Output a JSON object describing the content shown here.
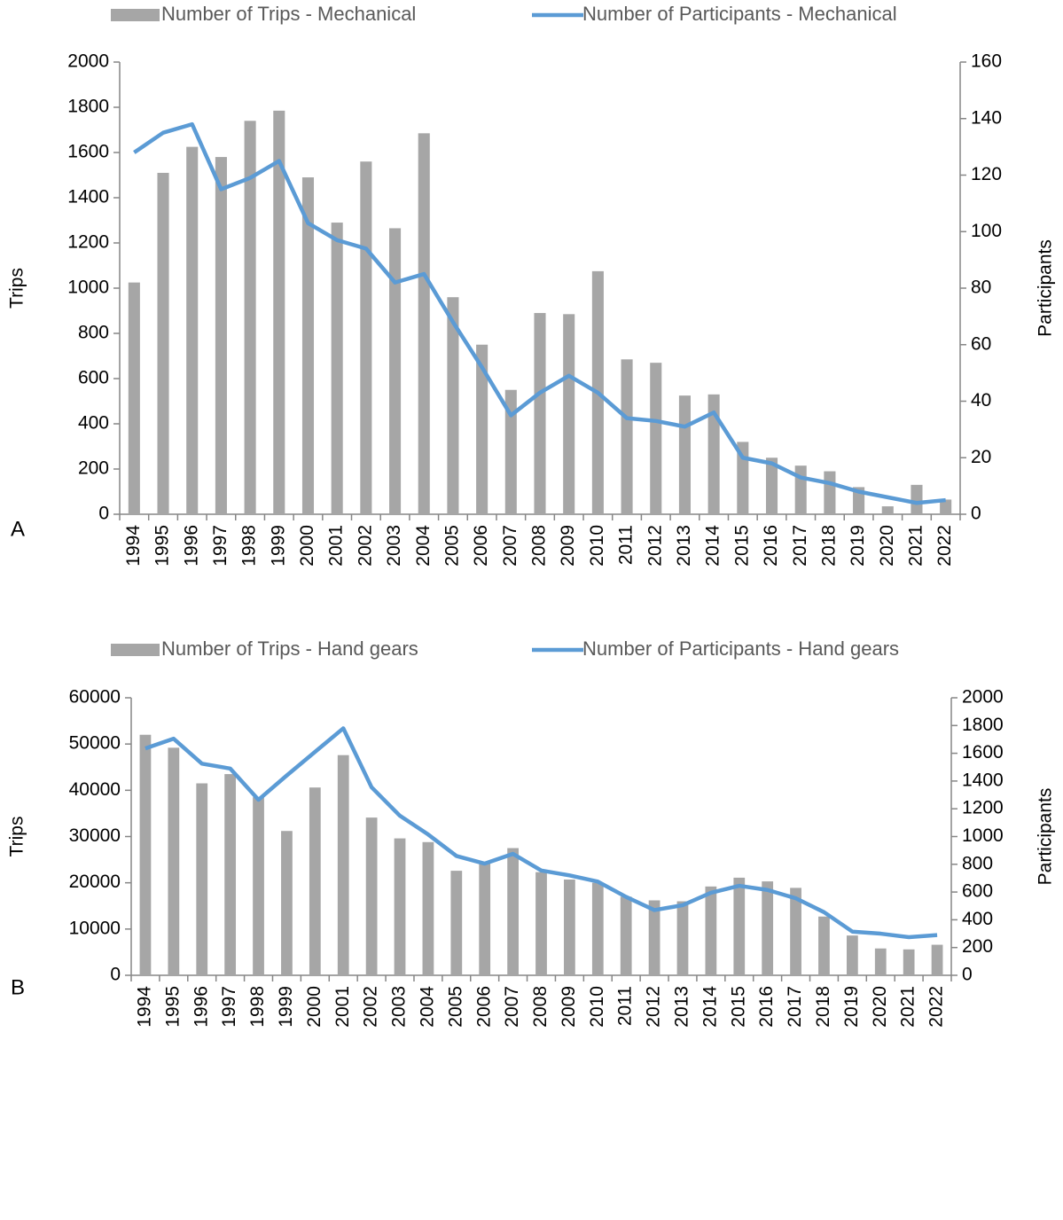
{
  "chart_data": [
    {
      "type": "combo",
      "panel_label": "A",
      "ylabel": "Trips",
      "y2label": "Participants",
      "categories": [
        "1994",
        "1995",
        "1996",
        "1997",
        "1998",
        "1999",
        "2000",
        "2001",
        "2002",
        "2003",
        "2004",
        "2005",
        "2006",
        "2007",
        "2008",
        "2009",
        "2010",
        "2011",
        "2012",
        "2013",
        "2014",
        "2015",
        "2016",
        "2017",
        "2018",
        "2019",
        "2020",
        "2021",
        "2022"
      ],
      "series": [
        {
          "name": "Number of Trips - Mechanical",
          "type": "bar",
          "color": "#a6a6a6",
          "values": [
            1025,
            1510,
            1625,
            1580,
            1740,
            1785,
            1490,
            1290,
            1560,
            1265,
            1685,
            960,
            750,
            550,
            890,
            885,
            1075,
            685,
            670,
            525,
            530,
            320,
            250,
            215,
            190,
            120,
            35,
            130,
            65
          ]
        },
        {
          "name": "Number of Participants - Mechanical",
          "type": "line",
          "axis": "y2",
          "color": "#5b9bd5",
          "values": [
            128,
            135,
            138,
            115,
            119,
            125,
            103,
            97,
            94,
            82,
            85,
            68,
            52,
            35,
            43,
            49,
            43,
            34,
            33,
            31,
            36,
            20,
            18,
            13,
            11,
            8,
            6,
            4,
            5
          ]
        }
      ],
      "ylim": [
        0,
        2000
      ],
      "yticks": [
        0,
        200,
        400,
        600,
        800,
        1000,
        1200,
        1400,
        1600,
        1800,
        2000
      ],
      "y2lim": [
        0,
        160
      ],
      "y2ticks": [
        0,
        20,
        40,
        60,
        80,
        100,
        120,
        140,
        160
      ],
      "legend": "top",
      "grid": false
    },
    {
      "type": "combo",
      "panel_label": "B",
      "ylabel": "Trips",
      "y2label": "Participants",
      "categories": [
        "1994",
        "1995",
        "1996",
        "1997",
        "1998",
        "1999",
        "2000",
        "2001",
        "2002",
        "2003",
        "2004",
        "2005",
        "2006",
        "2007",
        "2008",
        "2009",
        "2010",
        "2011",
        "2012",
        "2013",
        "2014",
        "2015",
        "2016",
        "2017",
        "2018",
        "2019",
        "2020",
        "2021",
        "2022"
      ],
      "series": [
        {
          "name": "Number of Trips - Hand gears",
          "type": "bar",
          "color": "#a6a6a6",
          "values": [
            52000,
            49200,
            41500,
            43500,
            38500,
            31200,
            40600,
            47600,
            34100,
            29600,
            28800,
            22600,
            24200,
            27500,
            22300,
            20700,
            20000,
            17000,
            16200,
            16000,
            19200,
            21100,
            20300,
            18900,
            12700,
            8600,
            5800,
            5600,
            6600
          ]
        },
        {
          "name": "Number of Participants - Hand gears",
          "type": "line",
          "axis": "y2",
          "color": "#5b9bd5",
          "values": [
            1635,
            1705,
            1525,
            1490,
            1265,
            1440,
            1610,
            1780,
            1355,
            1150,
            1015,
            860,
            805,
            875,
            755,
            720,
            675,
            565,
            470,
            505,
            595,
            645,
            615,
            555,
            455,
            315,
            300,
            275,
            290
          ]
        }
      ],
      "ylim": [
        0,
        60000
      ],
      "yticks": [
        0,
        10000,
        20000,
        30000,
        40000,
        50000,
        60000
      ],
      "y2lim": [
        0,
        2000
      ],
      "y2ticks": [
        0,
        200,
        400,
        600,
        800,
        1000,
        1200,
        1400,
        1600,
        1800,
        2000
      ],
      "legend": "top",
      "grid": false
    }
  ]
}
